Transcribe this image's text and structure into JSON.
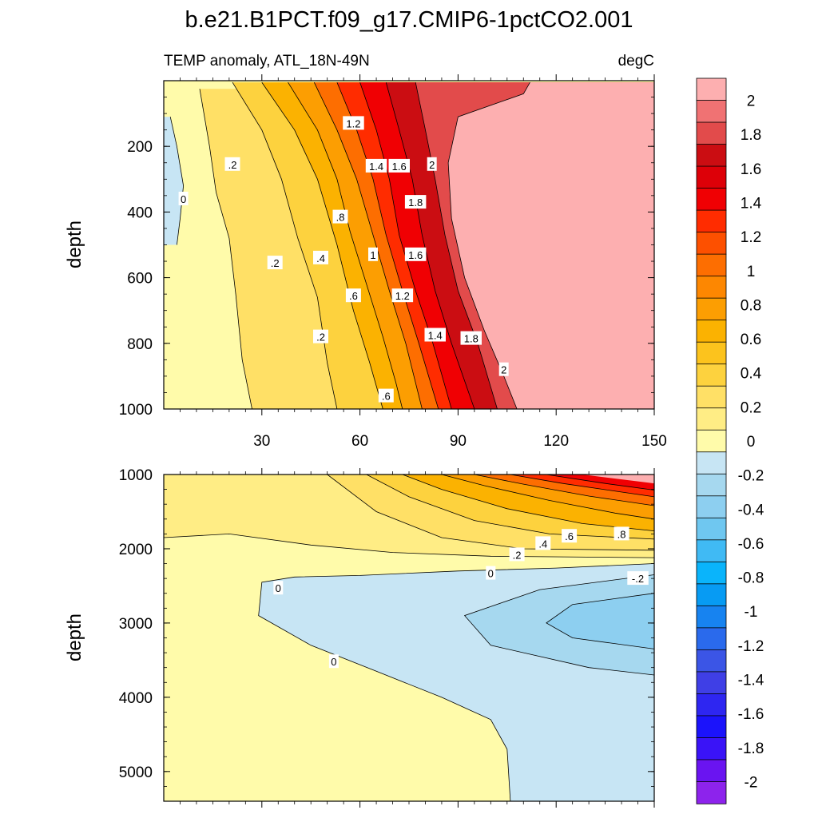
{
  "title": "b.e21.B1PCT.f09_g17.CMIP6-1pctCO2.001",
  "subtitle_left": "TEMP anomaly, ATL_18N-49N",
  "subtitle_right": "degC",
  "colors": {
    "zero_fill": "#fffbaa",
    "above_two": "#fdafb0",
    "positive": [
      "#fffbaa",
      "#ffed85",
      "#ffe066",
      "#fdd23e",
      "#fcc31d",
      "#fbb201",
      "#fc9e02",
      "#fd8701",
      "#fd6e01",
      "#fd5000",
      "#ff2c00",
      "#f00003",
      "#dd0008",
      "#cb0d12",
      "#e24b4b",
      "#f07273",
      "#fdafb0"
    ],
    "negative": [
      "#c7e5f4",
      "#a6d8ef",
      "#8dcff0",
      "#6fc7f0",
      "#40baf4",
      "#0ab4fb",
      "#079bf3",
      "#1783f0",
      "#2a6aec",
      "#3b55e6",
      "#3f3fe6",
      "#2e26f1",
      "#1b13fb",
      "#3a13f7",
      "#6a14f1",
      "#8d23ec"
    ]
  },
  "colorbar": {
    "labels": [
      "2",
      "1.8",
      "1.6",
      "1.4",
      "1.2",
      "1",
      "0.8",
      "0.6",
      "0.4",
      "0.2",
      "0",
      "-0.2",
      "-0.4",
      "-0.6",
      "-0.8",
      "-1",
      "-1.2",
      "-1.4",
      "-1.6",
      "-1.8",
      "-2"
    ]
  },
  "chart_data": [
    {
      "type": "heatmap",
      "panel": "upper",
      "xlabel": "",
      "ylabel": "depth",
      "xlim": [
        0,
        150
      ],
      "ylim": [
        1000,
        0
      ],
      "x_ticks": [
        30,
        60,
        90,
        120,
        150
      ],
      "y_ticks": [
        200,
        400,
        600,
        800,
        1000
      ],
      "contour_interval": 0.1,
      "isolines": [
        {
          "level": 0.0,
          "points": [
            [
              2,
              110
            ],
            [
              4,
              200
            ],
            [
              6,
              320
            ],
            [
              5,
              420
            ],
            [
              4,
              500
            ]
          ]
        },
        {
          "level": 0.2,
          "points": [
            [
              11,
              25
            ],
            [
              14,
              200
            ],
            [
              16,
              340
            ],
            [
              20,
              480
            ],
            [
              22,
              650
            ],
            [
              24,
              850
            ],
            [
              27,
              1000
            ]
          ]
        },
        {
          "level": 0.4,
          "points": [
            [
              21,
              5
            ],
            [
              30,
              150
            ],
            [
              36,
              300
            ],
            [
              41,
              480
            ],
            [
              47,
              660
            ],
            [
              50,
              860
            ],
            [
              53,
              1000
            ]
          ]
        },
        {
          "level": 0.6,
          "points": [
            [
              30,
              5
            ],
            [
              40,
              150
            ],
            [
              47,
              300
            ],
            [
              53,
              500
            ],
            [
              58,
              700
            ],
            [
              63,
              860
            ],
            [
              67,
              1000
            ]
          ]
        },
        {
          "level": 0.8,
          "points": [
            [
              38,
              5
            ],
            [
              47,
              150
            ],
            [
              53,
              300
            ],
            [
              57,
              460
            ],
            [
              62,
              620
            ],
            [
              67,
              780
            ],
            [
              71,
              920
            ],
            [
              73,
              1000
            ]
          ]
        },
        {
          "level": 1.0,
          "points": [
            [
              46,
              5
            ],
            [
              53,
              150
            ],
            [
              59,
              300
            ],
            [
              64,
              470
            ],
            [
              69,
              640
            ],
            [
              74,
              800
            ],
            [
              79,
              1000
            ]
          ]
        },
        {
          "level": 1.2,
          "points": [
            [
              53,
              5
            ],
            [
              59,
              150
            ],
            [
              64,
              300
            ],
            [
              68,
              470
            ],
            [
              73,
              640
            ],
            [
              78,
              800
            ],
            [
              84,
              1000
            ]
          ]
        },
        {
          "level": 1.4,
          "points": [
            [
              60,
              5
            ],
            [
              65,
              150
            ],
            [
              69,
              300
            ],
            [
              72,
              470
            ],
            [
              77,
              640
            ],
            [
              82,
              790
            ],
            [
              88,
              1000
            ]
          ]
        },
        {
          "level": 1.6,
          "points": [
            [
              68,
              5
            ],
            [
              72,
              150
            ],
            [
              76,
              300
            ],
            [
              79,
              470
            ],
            [
              83,
              640
            ],
            [
              88,
              800
            ],
            [
              95,
              1000
            ]
          ]
        },
        {
          "level": 1.8,
          "points": [
            [
              77,
              5
            ],
            [
              80,
              150
            ],
            [
              83,
              300
            ],
            [
              86,
              470
            ],
            [
              90,
              640
            ],
            [
              96,
              800
            ],
            [
              102,
              1000
            ]
          ]
        },
        {
          "level": 2.0,
          "points": [
            [
              112,
              5
            ],
            [
              110,
              40
            ],
            [
              90,
              110
            ],
            [
              87,
              250
            ],
            [
              88,
              420
            ],
            [
              92,
              600
            ],
            [
              98,
              760
            ],
            [
              104,
              900
            ],
            [
              108,
              1000
            ]
          ]
        }
      ],
      "contour_labels": [
        {
          "text": "1.2",
          "x": 58,
          "y": 130
        },
        {
          "text": "1.4",
          "x": 65,
          "y": 260
        },
        {
          "text": "1.6",
          "x": 72,
          "y": 260
        },
        {
          "text": "2",
          "x": 82,
          "y": 255
        },
        {
          "text": ".2",
          "x": 21,
          "y": 255
        },
        {
          "text": "0",
          "x": 6,
          "y": 360
        },
        {
          "text": "1.8",
          "x": 77,
          "y": 370
        },
        {
          "text": ".8",
          "x": 54,
          "y": 415
        },
        {
          "text": ".4",
          "x": 48,
          "y": 540
        },
        {
          "text": "1",
          "x": 64,
          "y": 530
        },
        {
          "text": "1.6",
          "x": 77,
          "y": 530
        },
        {
          "text": ".2",
          "x": 34,
          "y": 555
        },
        {
          "text": ".6",
          "x": 58,
          "y": 655
        },
        {
          "text": "1.2",
          "x": 73,
          "y": 655
        },
        {
          "text": ".2",
          "x": 48,
          "y": 780
        },
        {
          "text": "1.4",
          "x": 83,
          "y": 775
        },
        {
          "text": "1.8",
          "x": 94,
          "y": 785
        },
        {
          "text": "2",
          "x": 104,
          "y": 880
        },
        {
          "text": ".6",
          "x": 68,
          "y": 960
        }
      ]
    },
    {
      "type": "heatmap",
      "panel": "lower",
      "xlabel": "",
      "ylabel": "depth",
      "xlim": [
        0,
        150
      ],
      "ylim": [
        5400,
        1000
      ],
      "y_ticks": [
        1000,
        2000,
        3000,
        4000,
        5000
      ],
      "contour_interval": 0.1,
      "isolines": [
        {
          "level": 0.0,
          "points": [
            [
              150,
              2200
            ],
            [
              120,
              2260
            ],
            [
              90,
              2300
            ],
            [
              60,
              2360
            ],
            [
              40,
              2380
            ],
            [
              30,
              2450
            ],
            [
              29,
              2900
            ],
            [
              45,
              3300
            ],
            [
              65,
              3650
            ],
            [
              85,
              4000
            ],
            [
              100,
              4300
            ],
            [
              105,
              4700
            ],
            [
              106,
              5400
            ]
          ]
        },
        {
          "level": 0.1,
          "points": [
            [
              0,
              1850
            ],
            [
              20,
              1800
            ],
            [
              45,
              1950
            ],
            [
              70,
              2050
            ],
            [
              100,
              2100
            ],
            [
              150,
              2120
            ]
          ]
        },
        {
          "level": 0.2,
          "points": [
            [
              50,
              1000
            ],
            [
              65,
              1500
            ],
            [
              85,
              1850
            ],
            [
              110,
              2000
            ],
            [
              150,
              2020
            ]
          ]
        },
        {
          "level": 0.4,
          "points": [
            [
              62,
              1000
            ],
            [
              75,
              1300
            ],
            [
              95,
              1620
            ],
            [
              118,
              1800
            ],
            [
              150,
              1870
            ]
          ]
        },
        {
          "level": 0.6,
          "points": [
            [
              73,
              1000
            ],
            [
              85,
              1200
            ],
            [
              105,
              1460
            ],
            [
              128,
              1660
            ],
            [
              150,
              1760
            ]
          ]
        },
        {
          "level": 0.8,
          "points": [
            [
              85,
              1000
            ],
            [
              98,
              1150
            ],
            [
              118,
              1350
            ],
            [
              138,
              1520
            ],
            [
              150,
              1600
            ]
          ]
        },
        {
          "level": 1.0,
          "points": [
            [
              95,
              1000
            ],
            [
              110,
              1130
            ],
            [
              130,
              1290
            ],
            [
              150,
              1420
            ]
          ]
        },
        {
          "level": 1.2,
          "points": [
            [
              106,
              1000
            ],
            [
              122,
              1120
            ],
            [
              150,
              1300
            ]
          ]
        },
        {
          "level": 1.4,
          "points": [
            [
              117,
              1000
            ],
            [
              135,
              1120
            ],
            [
              150,
              1210
            ]
          ]
        },
        {
          "level": -0.1,
          "points": [
            [
              150,
              2350
            ],
            [
              115,
              2550
            ],
            [
              92,
              2900
            ],
            [
              100,
              3300
            ],
            [
              130,
              3600
            ],
            [
              150,
              3700
            ]
          ]
        },
        {
          "level": -0.2,
          "points": [
            [
              150,
              2600
            ],
            [
              125,
              2750
            ],
            [
              117,
              3000
            ],
            [
              125,
              3200
            ],
            [
              150,
              3350
            ]
          ]
        }
      ],
      "contour_labels": [
        {
          "text": ".8",
          "x": 140,
          "y": 1800
        },
        {
          "text": ".6",
          "x": 124,
          "y": 1830
        },
        {
          "text": ".4",
          "x": 116,
          "y": 1930
        },
        {
          "text": ".2",
          "x": 108,
          "y": 2080
        },
        {
          "text": "0",
          "x": 100,
          "y": 2330
        },
        {
          "text": "0",
          "x": 35,
          "y": 2530
        },
        {
          "text": "-.2",
          "x": 145,
          "y": 2400
        },
        {
          "text": "0",
          "x": 52,
          "y": 3520
        }
      ]
    }
  ]
}
